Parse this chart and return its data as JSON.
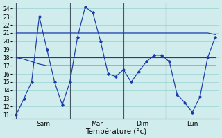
{
  "background_color": "#d0ecec",
  "grid_color": "#a8d8d8",
  "line_color": "#1a3aaa",
  "xlabel": "Température (°c)",
  "xlabel_fontsize": 7.5,
  "ylim": [
    10.5,
    24.7
  ],
  "yticks": [
    11,
    12,
    13,
    14,
    15,
    16,
    17,
    18,
    19,
    20,
    21,
    22,
    23,
    24
  ],
  "ytick_fontsize": 5.5,
  "xtick_fontsize": 6.5,
  "day_labels": [
    "Sam",
    "Mar",
    "Dim",
    "Lun"
  ],
  "series": [
    {
      "x": [
        0,
        1,
        2,
        3,
        4,
        5,
        6,
        7,
        8,
        9,
        10,
        11,
        12,
        13,
        14,
        15,
        16,
        17,
        18,
        19,
        20,
        21,
        22,
        23,
        24,
        25,
        26
      ],
      "y": [
        11,
        13,
        15,
        23,
        19,
        15,
        12.2,
        15,
        20.5,
        24.2,
        23.5,
        20,
        16,
        15.7,
        16.5,
        15.0,
        16.3,
        17.5,
        18.3,
        18.3,
        17.5,
        13.5,
        12.5,
        11.3,
        13.2,
        18,
        20.5
      ]
    },
    {
      "x": [
        0,
        1,
        2,
        3,
        4,
        5,
        6,
        7,
        8,
        9,
        10,
        11,
        12,
        13,
        14,
        15,
        16,
        17,
        18,
        19,
        20,
        21,
        22,
        23,
        24,
        25,
        26
      ],
      "y": [
        18,
        18,
        18,
        18,
        18,
        18,
        18,
        18,
        18,
        18,
        18,
        18,
        18,
        18,
        18,
        18,
        18,
        18,
        18,
        18,
        18,
        18,
        18,
        18,
        18,
        18,
        18
      ]
    },
    {
      "x": [
        0,
        1,
        2,
        3,
        4,
        5,
        6,
        7,
        8,
        9,
        10,
        11,
        12,
        13,
        14,
        15,
        16,
        17,
        18,
        19,
        20,
        21,
        22,
        23,
        24,
        25,
        26
      ],
      "y": [
        21,
        21,
        21,
        21,
        21,
        21,
        21,
        21,
        21,
        21,
        21,
        21,
        21,
        21,
        21,
        21,
        21,
        21,
        21,
        21,
        21,
        21,
        21,
        21,
        21,
        21,
        20.8
      ]
    },
    {
      "x": [
        0,
        1,
        2,
        3,
        4,
        5,
        6,
        7,
        8,
        9,
        10,
        11,
        12,
        13,
        14,
        15,
        16,
        17,
        18,
        19,
        20,
        21,
        22,
        23,
        24,
        25,
        26
      ],
      "y": [
        18,
        17.8,
        17.5,
        17.2,
        17,
        17,
        17,
        17,
        17,
        17,
        17,
        17,
        17,
        17,
        17,
        17,
        17,
        17,
        17,
        17,
        17,
        17,
        17,
        17,
        17,
        17,
        17
      ]
    }
  ],
  "n_points": 27,
  "xlim": [
    -0.5,
    26.5
  ],
  "figsize": [
    3.2,
    2.0
  ],
  "dpi": 100
}
